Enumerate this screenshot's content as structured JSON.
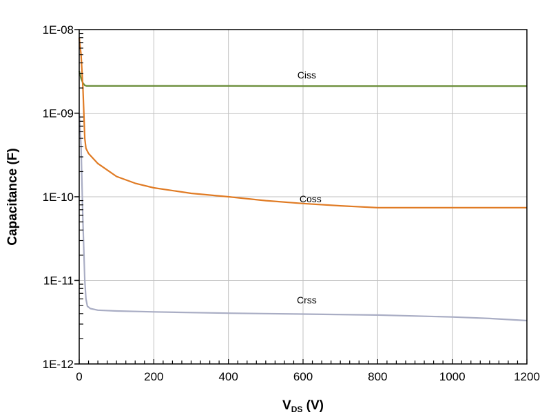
{
  "chart_data": {
    "type": "line",
    "title": "",
    "xlabel": {
      "main": "V",
      "sub": "DS",
      "unit": " (V)"
    },
    "ylabel": "Capacitance (F)",
    "xlim": [
      0,
      1200
    ],
    "ylim": [
      1e-12,
      1e-08
    ],
    "yscale": "log",
    "grid": true,
    "x_ticks": [
      "0",
      "200",
      "400",
      "600",
      "800",
      "1000",
      "1200"
    ],
    "y_ticks": [
      "1E-12",
      "1E-11",
      "1E-10",
      "1E-09",
      "1E-08"
    ],
    "series": [
      {
        "name": "Ciss",
        "color": "#6b8e3a",
        "x": [
          0,
          5,
          10,
          15,
          20,
          50,
          200,
          400,
          600,
          800,
          1000,
          1200
        ],
        "y": [
          3.2e-09,
          2.6e-09,
          2.3e-09,
          2.15e-09,
          2.12e-09,
          2.12e-09,
          2.12e-09,
          2.12e-09,
          2.11e-09,
          2.11e-09,
          2.11e-09,
          2.11e-09
        ]
      },
      {
        "name": "Coss",
        "color": "#e07b24",
        "x": [
          0,
          5,
          10,
          15,
          18,
          25,
          50,
          100,
          150,
          200,
          300,
          400,
          500,
          600,
          700,
          800,
          1000,
          1200
        ],
        "y": [
          8e-09,
          5e-09,
          2e-09,
          5e-10,
          3.8e-10,
          3.3e-10,
          2.5e-10,
          1.75e-10,
          1.45e-10,
          1.28e-10,
          1.1e-10,
          1e-10,
          9e-11,
          8.3e-11,
          7.8e-11,
          7.4e-11,
          7.4e-11,
          7.4e-11
        ]
      },
      {
        "name": "Crss",
        "color": "#a9adc4",
        "x": [
          0,
          5,
          10,
          15,
          18,
          22,
          30,
          50,
          100,
          200,
          400,
          600,
          800,
          1000,
          1100,
          1200
        ],
        "y": [
          1e-09,
          4e-10,
          5e-11,
          1e-11,
          6e-12,
          4.9e-12,
          4.6e-12,
          4.4e-12,
          4.3e-12,
          4.2e-12,
          4.05e-12,
          3.95e-12,
          3.85e-12,
          3.65e-12,
          3.5e-12,
          3.3e-12
        ]
      }
    ],
    "annotations": [
      {
        "text": "Ciss",
        "x": 610,
        "y": 2.6e-09
      },
      {
        "text": "Coss",
        "x": 620,
        "y": 8.6e-11
      },
      {
        "text": "Crss",
        "x": 610,
        "y": 5.3e-12
      }
    ]
  }
}
